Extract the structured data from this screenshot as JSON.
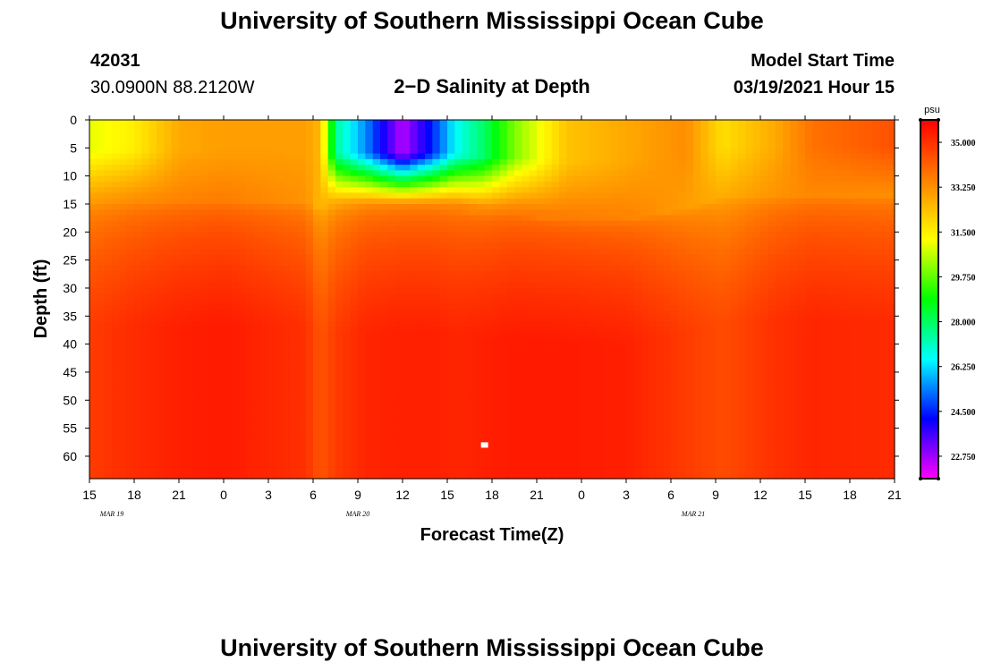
{
  "header": {
    "title_top": "University of Southern Mississippi Ocean Cube",
    "station_id": "42031",
    "location": "30.0900N 88.2120W",
    "subtitle": "2−D Salinity at Depth",
    "model_start_label": "Model Start Time",
    "model_start_value": "03/19/2021 Hour 15",
    "title_bottom": "University of Southern Mississippi Ocean Cube"
  },
  "chart_data": {
    "type": "heatmap",
    "title": "2−D Salinity at Depth",
    "xlabel": "Forecast Time(Z)",
    "ylabel": "Depth (ft)",
    "x_ticks": [
      "15",
      "18",
      "21",
      "0",
      "3",
      "6",
      "9",
      "12",
      "15",
      "18",
      "21",
      "0",
      "3",
      "6",
      "9",
      "12",
      "15",
      "18",
      "21"
    ],
    "date_labels": [
      {
        "text": "MAR  19",
        "hour_index": 1.5
      },
      {
        "text": "MAR  20",
        "hour_index": 18
      },
      {
        "text": "MAR  21",
        "hour_index": 40.5
      }
    ],
    "xlim_hours": [
      0,
      54
    ],
    "y_ticks": [
      0,
      5,
      10,
      15,
      20,
      25,
      30,
      35,
      40,
      45,
      50,
      55,
      60
    ],
    "ylim": [
      0,
      64
    ],
    "colorbar": {
      "unit": "psu",
      "ticks": [
        "35.000",
        "33.250",
        "31.500",
        "29.750",
        "28.000",
        "26.250",
        "24.500",
        "22.750"
      ],
      "range": [
        21.875,
        35.875
      ]
    },
    "columns": [
      {
        "hour": 0,
        "surface": 31.0,
        "layer_bottom": 9,
        "deep": 34.8
      },
      {
        "hour": 3,
        "surface": 31.5,
        "layer_bottom": 9,
        "deep": 35.1
      },
      {
        "hour": 6,
        "surface": 32.8,
        "layer_bottom": 9,
        "deep": 35.3
      },
      {
        "hour": 9,
        "surface": 33.0,
        "layer_bottom": 9,
        "deep": 35.4
      },
      {
        "hour": 14.5,
        "surface": 33.0,
        "layer_bottom": 9,
        "deep": 35.0
      },
      {
        "hour": 15.5,
        "surface": 32.5,
        "layer_bottom": 10,
        "deep": 34.3
      },
      {
        "hour": 16.5,
        "surface": 27.5,
        "layer_bottom": 10,
        "deep": 34.8
      },
      {
        "hour": 18.5,
        "surface": 25.5,
        "layer_bottom": 10,
        "deep": 35.2
      },
      {
        "hour": 21,
        "surface": 22.5,
        "layer_bottom": 10,
        "deep": 35.3
      },
      {
        "hour": 23,
        "surface": 24.5,
        "layer_bottom": 10,
        "deep": 35.3
      },
      {
        "hour": 24.5,
        "surface": 26.5,
        "layer_bottom": 10,
        "deep": 35.2
      },
      {
        "hour": 26.5,
        "surface": 28.0,
        "layer_bottom": 11,
        "deep": 35.3
      },
      {
        "hour": 28.5,
        "surface": 30.0,
        "layer_bottom": 11,
        "deep": 35.4
      },
      {
        "hour": 32,
        "surface": 32.3,
        "layer_bottom": 12,
        "deep": 35.4
      },
      {
        "hour": 36,
        "surface": 32.8,
        "layer_bottom": 12,
        "deep": 35.3
      },
      {
        "hour": 40,
        "surface": 33.3,
        "layer_bottom": 10,
        "deep": 34.8
      },
      {
        "hour": 42.5,
        "surface": 31.8,
        "layer_bottom": 8,
        "deep": 34.5
      },
      {
        "hour": 46,
        "surface": 32.8,
        "layer_bottom": 8,
        "deep": 35.0
      },
      {
        "hour": 48.5,
        "surface": 33.8,
        "layer_bottom": 8,
        "deep": 35.2
      },
      {
        "hour": 54,
        "surface": 34.4,
        "layer_bottom": 8,
        "deep": 35.1
      }
    ],
    "marker": {
      "hour": 26.5,
      "depth": 58
    }
  },
  "colors": {
    "ramp": [
      "#ff00ff",
      "#7f00ff",
      "#0000ff",
      "#0080ff",
      "#00ffff",
      "#00ff80",
      "#00ff00",
      "#80ff00",
      "#ffff00",
      "#ffc000",
      "#ff8000",
      "#ff4000",
      "#ff0000"
    ]
  }
}
